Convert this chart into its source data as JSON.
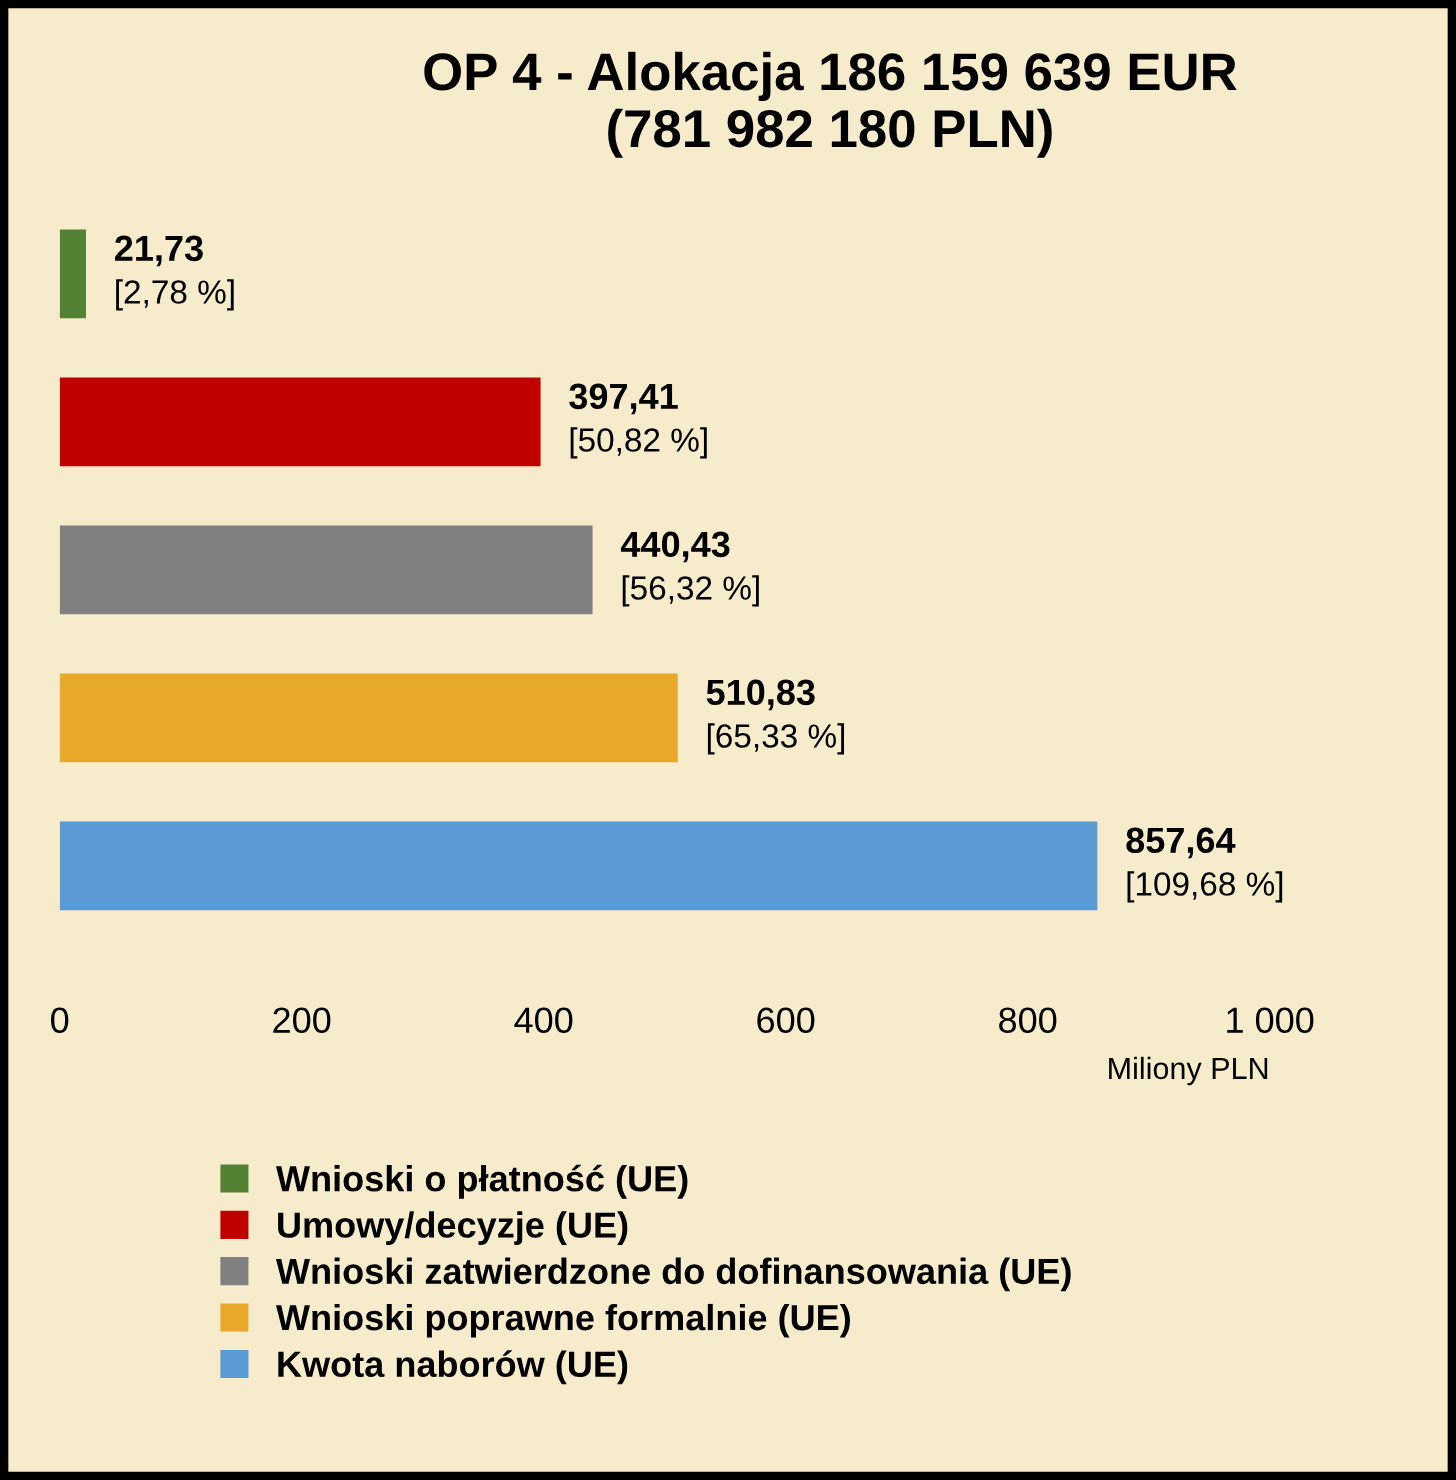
{
  "chart_data": {
    "type": "bar",
    "orientation": "horizontal",
    "title": "OP 4 - Alokacja 186 159 639 EUR\n(781 982 180 PLN)",
    "xlabel": "Miliony PLN",
    "categories": [
      null,
      null,
      null,
      null,
      null
    ],
    "series": [
      {
        "name": "Wnioski o płatność (UE)",
        "color": "#548235",
        "values": [
          21.73,
          null,
          null,
          null,
          null
        ],
        "value_labels": [
          "21,73\n[2,78 %]",
          null,
          null,
          null,
          null
        ]
      },
      {
        "name": "Umowy/decyzje (UE)",
        "color": "#c00000",
        "values": [
          null,
          397.41,
          null,
          null,
          null
        ],
        "value_labels": [
          null,
          "397,41\n[50,82 %]",
          null,
          null,
          null
        ]
      },
      {
        "name": "Wnioski zatwierdzone do dofinansowania (UE)",
        "color": "#808080",
        "values": [
          null,
          null,
          440.43,
          null,
          null
        ],
        "value_labels": [
          null,
          null,
          "440,43\n[56,32 %]",
          null,
          null
        ]
      },
      {
        "name": "Wnioski poprawne formalnie (UE)",
        "color": "#e8a82a",
        "values": [
          null,
          null,
          null,
          510.83,
          null
        ],
        "value_labels": [
          null,
          null,
          null,
          "510,83\n[65,33 %]",
          null
        ]
      },
      {
        "name": "Kwota naborów (UE)",
        "color": "#5b9bd5",
        "values": [
          null,
          null,
          null,
          null,
          857.64
        ],
        "value_labels": [
          null,
          null,
          null,
          null,
          "857,64\n[109,68 %]"
        ]
      }
    ],
    "xlim": [
      0,
      1000
    ],
    "xticks": [
      0,
      200,
      400,
      600,
      800,
      {
        "value": 1000,
        "label": "1 000"
      }
    ],
    "stacked": true,
    "tick_labels": "x",
    "grid": false,
    "legend": "bottom"
  }
}
